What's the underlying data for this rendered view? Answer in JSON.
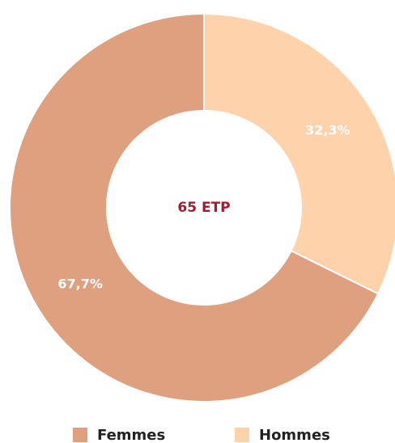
{
  "chart_data": {
    "type": "donut",
    "categories": [
      "Femmes",
      "Hommes"
    ],
    "values": [
      67.7,
      32.3
    ],
    "value_labels": [
      "67,7%",
      "32,3%"
    ],
    "colors": [
      "#dea07e",
      "#fed2ab"
    ],
    "annotation": "65 ETP",
    "legend": "bottom"
  }
}
